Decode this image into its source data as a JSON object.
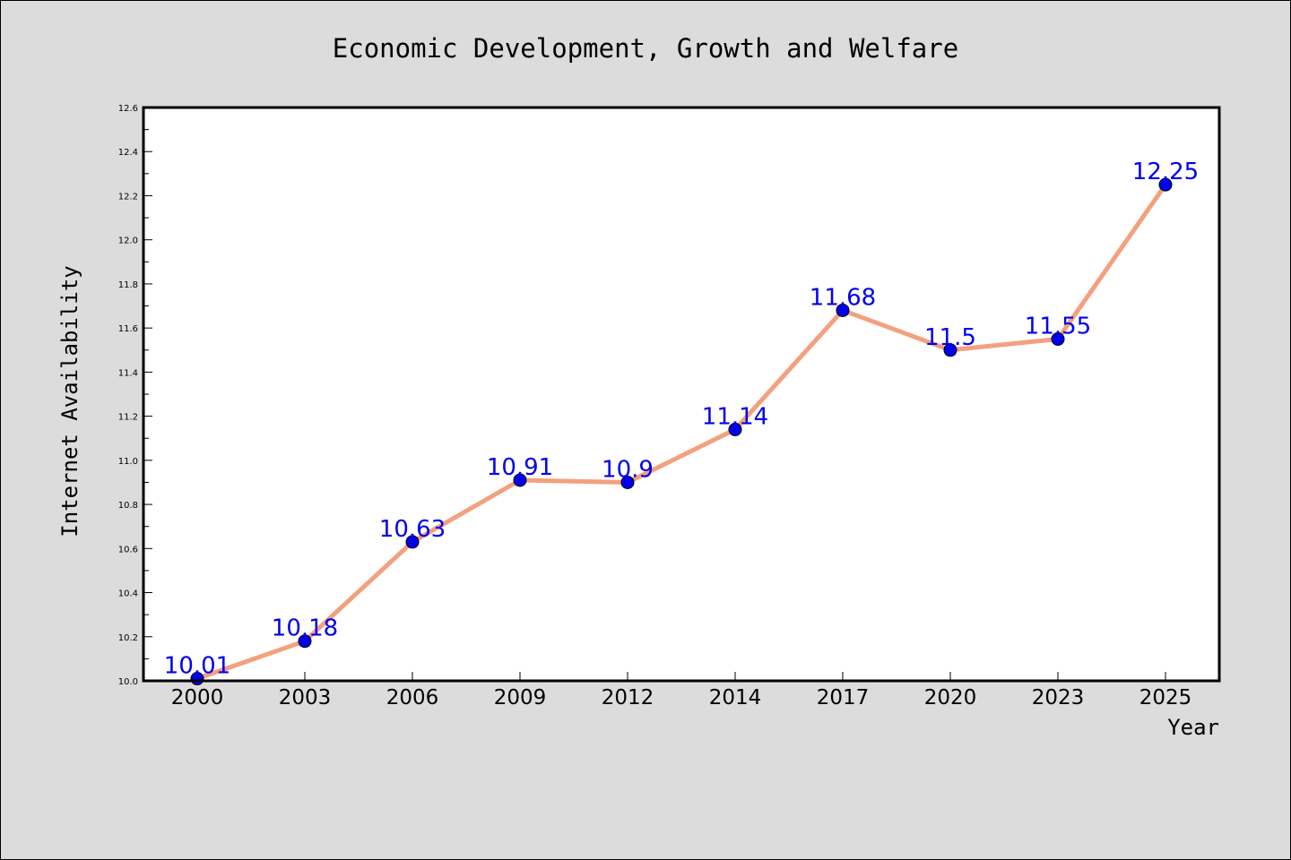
{
  "chart_data": {
    "type": "line",
    "title": "Economic Development, Growth and Welfare",
    "xlabel": "Year",
    "ylabel": "Internet Availability",
    "categories": [
      "2000",
      "2003",
      "2006",
      "2009",
      "2012",
      "2014",
      "2017",
      "2020",
      "2023",
      "2025"
    ],
    "series": [
      {
        "values": [
          10.01,
          10.18,
          10.63,
          10.91,
          10.9,
          11.14,
          11.68,
          11.5,
          11.55,
          12.25
        ],
        "labels": [
          "10.01",
          "10.18",
          "10.63",
          "10.91",
          "10.9",
          "11.14",
          "11.68",
          "11.5",
          "11.55",
          "12.25"
        ],
        "line_color": "#f4a07e",
        "marker_color": "#0000ee",
        "label_color": "#0000ee"
      }
    ],
    "ylim": [
      10.0,
      12.6
    ],
    "yticks": [
      "10.0",
      "10.2",
      "10.4",
      "10.6",
      "10.8",
      "11.0",
      "11.2",
      "11.4",
      "11.6",
      "11.8",
      "12.0",
      "12.2",
      "12.4",
      "12.6"
    ],
    "grid": false,
    "legend": "none",
    "background_color": "#dcdcdc",
    "plot_background_color": "#ffffff"
  }
}
